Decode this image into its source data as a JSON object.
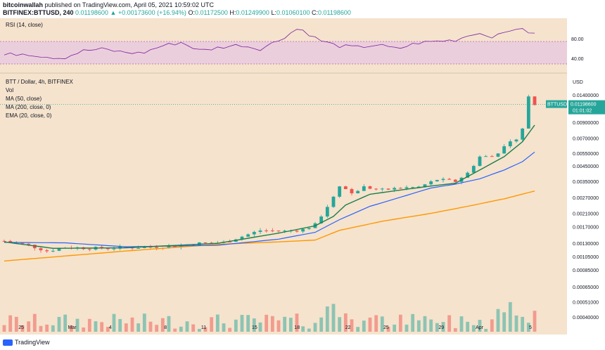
{
  "header": {
    "author": "bitcoinwallah",
    "published": "published on TradingView.com, April 05, 2021 10:59:02 UTC",
    "symbol": "BITFINEX:BTTUSD, 240",
    "price": "0.01198600",
    "change": "▲ +0.00173600 (+16.94%)",
    "o_label": "O:",
    "o": "0.01172500",
    "h_label": "H:",
    "h": "0.01249900",
    "l_label": "L:",
    "l": "0.01060100",
    "c_label": "C:",
    "c": "0.01198600"
  },
  "rsi": {
    "label": "RSI (14, close)",
    "ticks": [
      "80.00",
      "40.00"
    ]
  },
  "legend": [
    "BTT / Dollar, 4h, BITFINEX",
    "Vol",
    "MA (50, close)",
    "MA (200, close, 0)",
    "EMA (20, close, 0)"
  ],
  "price_axis": {
    "currency": "USD",
    "badge_symbol": "BTTUSD",
    "badge_price": "0.01198600",
    "badge_timer": "01:01:02"
  },
  "footer": {
    "brand": "TradingView"
  },
  "colors": {
    "up": "#26a69a",
    "down": "#ef5350",
    "ema20": "#1e7d4a",
    "ma50": "#2962ff",
    "ma200": "#ff9800",
    "rsi": "#7b1fa2",
    "bg": "#f5e3cd"
  },
  "chart_data": {
    "type": "candlestick",
    "y_scale": "log",
    "ylim": [
      0.00037,
      0.0185
    ],
    "yticks": [
      "0.01400000",
      "0.00900000",
      "0.00700000",
      "0.00550000",
      "0.00450000",
      "0.00350000",
      "0.00270000",
      "0.00210000",
      "0.00170000",
      "0.00130000",
      "0.00105000",
      "0.00085000",
      "0.00065000",
      "0.00051000",
      "0.00040000"
    ],
    "x_labels": [
      "25",
      "Mar",
      "4",
      "8",
      "11",
      "15",
      "18",
      "22",
      "25",
      "29",
      "Apr",
      "5"
    ],
    "close_path": [
      [
        0,
        0.00135
      ],
      [
        4,
        0.00126
      ],
      [
        7,
        0.00115
      ],
      [
        10,
        0.00122
      ],
      [
        15,
        0.0012
      ],
      [
        22,
        0.00122
      ],
      [
        28,
        0.00124
      ],
      [
        32,
        0.0013
      ],
      [
        36,
        0.00132
      ],
      [
        39,
        0.00145
      ],
      [
        42,
        0.0016
      ],
      [
        46,
        0.00158
      ],
      [
        49,
        0.00162
      ],
      [
        51,
        0.00175
      ],
      [
        53,
        0.00235
      ],
      [
        55,
        0.0033
      ],
      [
        57,
        0.0029
      ],
      [
        59,
        0.0032
      ],
      [
        62,
        0.00305
      ],
      [
        65,
        0.00315
      ],
      [
        68,
        0.0032
      ],
      [
        71,
        0.0036
      ],
      [
        74,
        0.0035
      ],
      [
        76,
        0.004
      ],
      [
        78,
        0.0052
      ],
      [
        80,
        0.0052
      ],
      [
        82,
        0.006
      ],
      [
        84,
        0.007
      ],
      [
        85,
        0.0082
      ],
      [
        86,
        0.0135
      ],
      [
        87,
        0.01199
      ]
    ],
    "ema20": [
      [
        0,
        0.00133
      ],
      [
        8,
        0.0012
      ],
      [
        20,
        0.00121
      ],
      [
        35,
        0.0013
      ],
      [
        45,
        0.00153
      ],
      [
        51,
        0.00172
      ],
      [
        54,
        0.002
      ],
      [
        56,
        0.0024
      ],
      [
        60,
        0.00285
      ],
      [
        65,
        0.00305
      ],
      [
        70,
        0.00325
      ],
      [
        74,
        0.0034
      ],
      [
        78,
        0.0042
      ],
      [
        82,
        0.0052
      ],
      [
        85,
        0.0066
      ],
      [
        87,
        0.0086
      ]
    ],
    "ma50": [
      [
        0,
        0.00132
      ],
      [
        10,
        0.00131
      ],
      [
        20,
        0.00123
      ],
      [
        35,
        0.00126
      ],
      [
        45,
        0.00139
      ],
      [
        51,
        0.00155
      ],
      [
        55,
        0.0019
      ],
      [
        60,
        0.00235
      ],
      [
        66,
        0.0028
      ],
      [
        70,
        0.00315
      ],
      [
        74,
        0.00335
      ],
      [
        78,
        0.00365
      ],
      [
        82,
        0.0042
      ],
      [
        85,
        0.0048
      ],
      [
        87,
        0.0056
      ]
    ],
    "ma200": [
      [
        0,
        0.00098
      ],
      [
        20,
        0.00115
      ],
      [
        35,
        0.00128
      ],
      [
        45,
        0.00133
      ],
      [
        51,
        0.00137
      ],
      [
        55,
        0.0016
      ],
      [
        62,
        0.00185
      ],
      [
        70,
        0.0021
      ],
      [
        76,
        0.00235
      ],
      [
        82,
        0.00265
      ],
      [
        87,
        0.003
      ]
    ],
    "rsi_values": [
      45,
      48,
      43,
      40,
      52,
      55,
      50,
      48,
      60,
      66,
      52,
      58,
      62,
      55,
      70,
      90,
      70,
      60,
      58,
      62,
      55,
      65,
      68,
      70,
      82,
      75,
      90,
      80
    ]
  }
}
